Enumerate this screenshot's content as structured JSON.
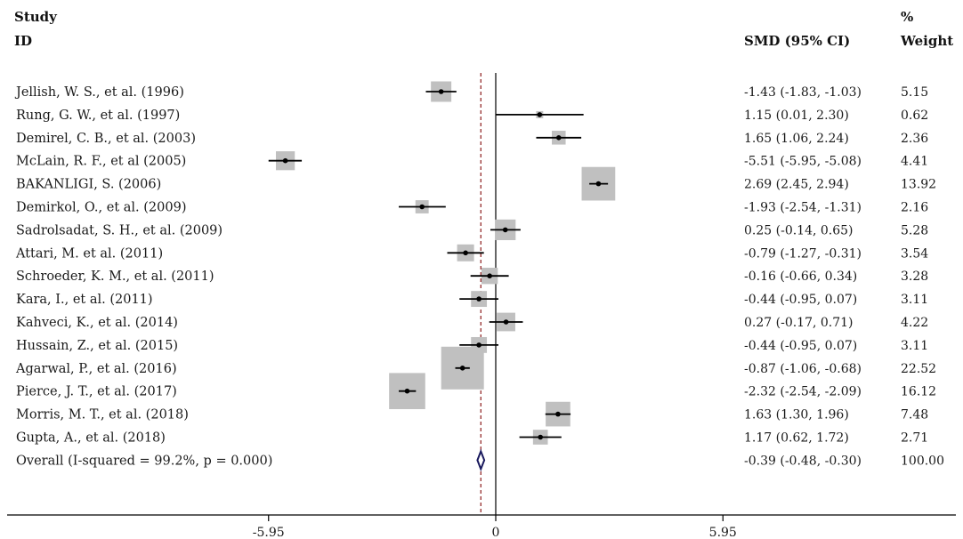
{
  "chart_data": {
    "type": "forest",
    "columns": {
      "study_line1": "Study",
      "study_line2": "ID",
      "effect": "SMD (95% CI)",
      "weight_line1": "%",
      "weight_line2": "Weight"
    },
    "x_ticks": [
      {
        "value": -5.95,
        "label": "-5.95"
      },
      {
        "value": 0,
        "label": "0"
      },
      {
        "value": 5.95,
        "label": "5.95"
      }
    ],
    "xlim": [
      -5.95,
      5.95
    ],
    "null_line": 0,
    "overall_line": -0.39,
    "colors": {
      "box": "#c0c0c0",
      "ci_line": "#000000",
      "point": "#000000",
      "overall_dash": "#8b1a1a",
      "diamond": "#1a1a5e"
    },
    "studies": [
      {
        "label": "Jellish, W. S., et al. (1996)",
        "est": -1.43,
        "lo": -1.83,
        "hi": -1.03,
        "ci_text": "-1.43 (-1.83, -1.03)",
        "weight": 5.15,
        "weight_text": "5.15"
      },
      {
        "label": "Rung, G. W., et al. (1997)",
        "est": 1.15,
        "lo": 0.01,
        "hi": 2.3,
        "ci_text": "1.15 (0.01, 2.30)",
        "weight": 0.62,
        "weight_text": "0.62"
      },
      {
        "label": "Demirel, C. B., et al. (2003)",
        "est": 1.65,
        "lo": 1.06,
        "hi": 2.24,
        "ci_text": "1.65 (1.06, 2.24)",
        "weight": 2.36,
        "weight_text": "2.36"
      },
      {
        "label": "McLain, R. F., et al (2005)",
        "est": -5.51,
        "lo": -5.95,
        "hi": -5.08,
        "ci_text": "-5.51 (-5.95, -5.08)",
        "weight": 4.41,
        "weight_text": "4.41"
      },
      {
        "label": "BAKANLIGI, S. (2006)",
        "est": 2.69,
        "lo": 2.45,
        "hi": 2.94,
        "ci_text": "2.69 (2.45, 2.94)",
        "weight": 13.92,
        "weight_text": "13.92"
      },
      {
        "label": "Demirkol, O., et al. (2009)",
        "est": -1.93,
        "lo": -2.54,
        "hi": -1.31,
        "ci_text": "-1.93 (-2.54, -1.31)",
        "weight": 2.16,
        "weight_text": "2.16"
      },
      {
        "label": "Sadrolsadat, S. H., et al. (2009)",
        "est": 0.25,
        "lo": -0.14,
        "hi": 0.65,
        "ci_text": "0.25 (-0.14, 0.65)",
        "weight": 5.28,
        "weight_text": "5.28"
      },
      {
        "label": "Attari, M. et  al. (2011)",
        "est": -0.79,
        "lo": -1.27,
        "hi": -0.31,
        "ci_text": "-0.79 (-1.27, -0.31)",
        "weight": 3.54,
        "weight_text": "3.54"
      },
      {
        "label": "Schroeder, K. M., et al. (2011)",
        "est": -0.16,
        "lo": -0.66,
        "hi": 0.34,
        "ci_text": "-0.16 (-0.66, 0.34)",
        "weight": 3.28,
        "weight_text": "3.28"
      },
      {
        "label": "Kara, I., et al. (2011)",
        "est": -0.44,
        "lo": -0.95,
        "hi": 0.07,
        "ci_text": "-0.44 (-0.95, 0.07)",
        "weight": 3.11,
        "weight_text": "3.11"
      },
      {
        "label": "Kahveci, K., et al. (2014)",
        "est": 0.27,
        "lo": -0.17,
        "hi": 0.71,
        "ci_text": "0.27 (-0.17, 0.71)",
        "weight": 4.22,
        "weight_text": "4.22"
      },
      {
        "label": "Hussain, Z., et al. (2015)",
        "est": -0.44,
        "lo": -0.95,
        "hi": 0.07,
        "ci_text": "-0.44 (-0.95, 0.07)",
        "weight": 3.11,
        "weight_text": "3.11"
      },
      {
        "label": "Agarwal, P., et al. (2016)",
        "est": -0.87,
        "lo": -1.06,
        "hi": -0.68,
        "ci_text": "-0.87 (-1.06, -0.68)",
        "weight": 22.52,
        "weight_text": "22.52"
      },
      {
        "label": "Pierce, J. T., et al. (2017)",
        "est": -2.32,
        "lo": -2.54,
        "hi": -2.09,
        "ci_text": "-2.32 (-2.54, -2.09)",
        "weight": 16.12,
        "weight_text": "16.12"
      },
      {
        "label": "Morris, M. T., et al. (2018)",
        "est": 1.63,
        "lo": 1.3,
        "hi": 1.96,
        "ci_text": "1.63 (1.30, 1.96)",
        "weight": 7.48,
        "weight_text": "7.48"
      },
      {
        "label": "Gupta, A., et al. (2018)",
        "est": 1.17,
        "lo": 0.62,
        "hi": 1.72,
        "ci_text": "1.17 (0.62, 1.72)",
        "weight": 2.71,
        "weight_text": "2.71"
      }
    ],
    "overall": {
      "label": "Overall  (I-squared = 99.2%, p = 0.000)",
      "est": -0.39,
      "lo": -0.48,
      "hi": -0.3,
      "ci_text": "-0.39 (-0.48, -0.30)",
      "weight_text": "100.00"
    }
  }
}
